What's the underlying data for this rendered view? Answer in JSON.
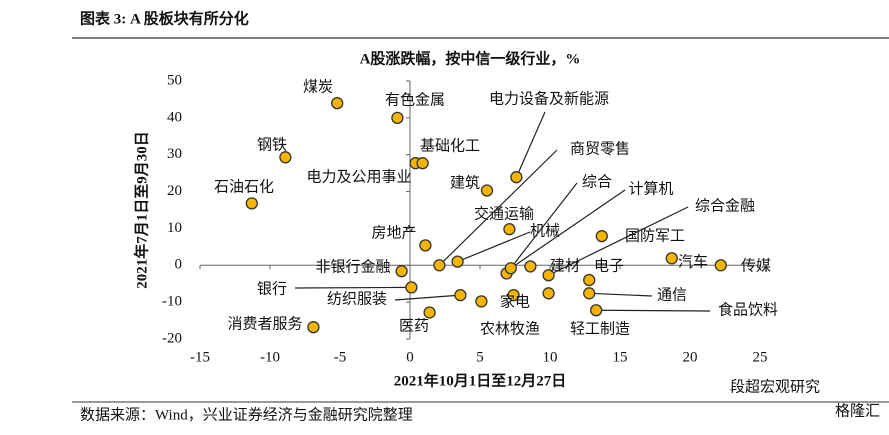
{
  "header": {
    "title": "图表 3:  A 股板块有所分化"
  },
  "chart_data": {
    "type": "scatter",
    "title": "A股涨跌幅，按中信一级行业，%",
    "xlabel": "2021年10月1日至12月27日",
    "ylabel": "2021年7月1日至9月30日",
    "labels": [
      "煤炭",
      "有色金属",
      "钢铁",
      "石油石化",
      "电力及公用事业",
      "基础化工",
      "电力设备及新能源",
      "建筑",
      "交通运输",
      "房地产",
      "商贸零售",
      "机械",
      "综合",
      "计算机",
      "综合金融",
      "建材",
      "国防军工",
      "电子",
      "汽车",
      "传媒",
      "非银行金融",
      "银行",
      "通信",
      "纺织服装",
      "家电",
      "食品饮料",
      "消费者服务",
      "医药",
      "农林牧渔",
      "轻工制造"
    ],
    "x": [
      -5.2,
      -0.9,
      -8.9,
      -11.3,
      0.4,
      0.9,
      7.6,
      5.5,
      7.1,
      1.1,
      2.1,
      3.4,
      6.9,
      7.2,
      9.9,
      8.6,
      13.7,
      12.8,
      18.7,
      22.2,
      -0.6,
      0.1,
      12.8,
      3.6,
      7.4,
      13.3,
      -6.9,
      1.4,
      5.1,
      9.9
    ],
    "values": [
      44,
      40,
      29.3,
      16.8,
      27.7,
      27.7,
      23.9,
      20.3,
      9.8,
      5.4,
      0,
      1,
      -2.2,
      -0.8,
      -2.7,
      -0.3,
      7.9,
      -4,
      1.9,
      0,
      -1.6,
      -6,
      -7.6,
      -8.1,
      -8.1,
      -12.2,
      -16.8,
      -12.8,
      -9.8,
      -7.6
    ],
    "color": "#f5b400",
    "edgecolor": "#333333",
    "xlim": [
      -15,
      25
    ],
    "ylim": [
      -20,
      50
    ],
    "xticks": [
      -15,
      -10,
      -5,
      0,
      5,
      10,
      15,
      20,
      25
    ],
    "yticks": [
      -20,
      -10,
      0,
      10,
      20,
      30,
      40,
      50
    ]
  },
  "source": "数据来源：Wind，兴业证券经济与金融研究院整理",
  "watermark": [
    "段超宏观研究",
    "格隆汇"
  ]
}
